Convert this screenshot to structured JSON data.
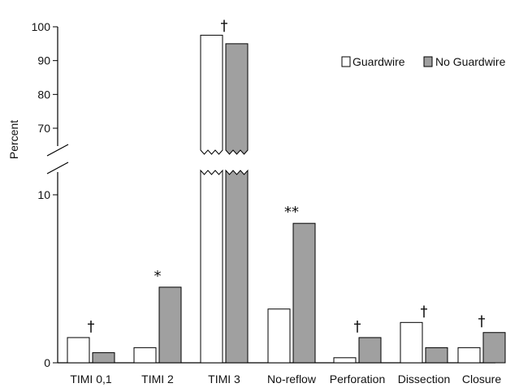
{
  "chart_data": {
    "type": "bar",
    "ylabel": "Percent",
    "categories": [
      "TIMI 0,1",
      "TIMI 2",
      "TIMI 3",
      "No-reflow",
      "Perforation",
      "Dissection",
      "Closure"
    ],
    "series": [
      {
        "name": "Guardwire",
        "color": "#ffffff",
        "values": [
          1.5,
          0.9,
          97.5,
          3.2,
          0.3,
          2.4,
          0.9
        ]
      },
      {
        "name": "No Guardwire",
        "color": "#a0a0a0",
        "values": [
          0.6,
          4.5,
          95.0,
          8.3,
          1.5,
          0.9,
          1.8
        ]
      }
    ],
    "annotations": [
      "†",
      "*",
      "†",
      "**",
      "†",
      "†",
      "†"
    ],
    "y_axis_lower": {
      "ticks": [
        "0",
        "10"
      ],
      "range": [
        0,
        10
      ]
    },
    "y_axis_upper": {
      "ticks": [
        "70",
        "80",
        "90",
        "100"
      ],
      "range": [
        70,
        100
      ]
    },
    "axis_break": true,
    "legend_position": "top-right",
    "grid": false
  }
}
